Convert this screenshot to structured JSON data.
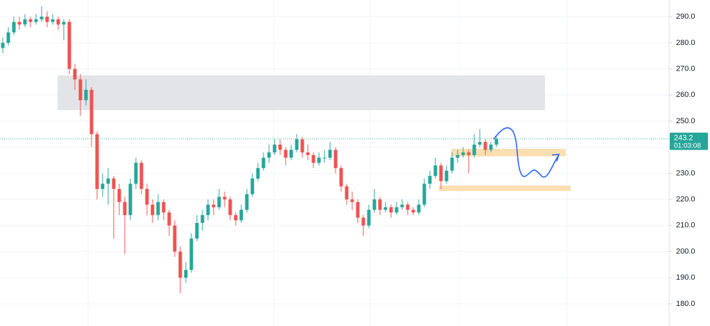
{
  "chart_data": {
    "type": "candlestick",
    "ylim": [
      171.5,
      296.4
    ],
    "yticks": [
      {
        "value": 180,
        "label": "180.0"
      },
      {
        "value": 190,
        "label": "190.0"
      },
      {
        "value": 200,
        "label": "200.0"
      },
      {
        "value": 210,
        "label": "210.0"
      },
      {
        "value": 220,
        "label": "220.0"
      },
      {
        "value": 230,
        "label": "230.0"
      },
      {
        "value": 240,
        "label": "240.0"
      },
      {
        "value": 250,
        "label": "250.0"
      },
      {
        "value": 260,
        "label": "260.0"
      },
      {
        "value": 270,
        "label": "270.0"
      },
      {
        "value": 280,
        "label": "280.0"
      },
      {
        "value": 290,
        "label": "290.0"
      }
    ],
    "grid": true,
    "up_color": "#26a69a",
    "down_color": "#ef5350",
    "countdown": "01:03:08",
    "zones": [
      {
        "from": 254.2,
        "to": 267.5,
        "color": "#e0e1e6"
      },
      {
        "from": 236.5,
        "to": 239.4,
        "color": "#fbdcaa"
      },
      {
        "from": 223.2,
        "to": 225.3,
        "color": "#fbdcaa"
      }
    ],
    "ohlc": [
      [
        278,
        282,
        276,
        280
      ],
      [
        280,
        286,
        279,
        284
      ],
      [
        284,
        290,
        283,
        288
      ],
      [
        288,
        290,
        285,
        287
      ],
      [
        287,
        291,
        286,
        289
      ],
      [
        289,
        290,
        286,
        288
      ],
      [
        288,
        291,
        287,
        289
      ],
      [
        289,
        294,
        288,
        290
      ],
      [
        290,
        292,
        286,
        288
      ],
      [
        288,
        291,
        287,
        289
      ],
      [
        289,
        290,
        285,
        287
      ],
      [
        287,
        289,
        281,
        288
      ],
      [
        288,
        289,
        268,
        270
      ],
      [
        270,
        272,
        262,
        266
      ],
      [
        266,
        268,
        252,
        258
      ],
      [
        258,
        266,
        256,
        262
      ],
      [
        262,
        263,
        240,
        245
      ],
      [
        245,
        246,
        220,
        224
      ],
      [
        224,
        230,
        221,
        226
      ],
      [
        226,
        232,
        218,
        228
      ],
      [
        228,
        229,
        205,
        224
      ],
      [
        224,
        226,
        214,
        219
      ],
      [
        219,
        221,
        199,
        214
      ],
      [
        214,
        228,
        212,
        226
      ],
      [
        226,
        236,
        224,
        234
      ],
      [
        234,
        235,
        222,
        224
      ],
      [
        224,
        226,
        214,
        218
      ],
      [
        218,
        220,
        211,
        214
      ],
      [
        214,
        222,
        212,
        219
      ],
      [
        219,
        220,
        212,
        215
      ],
      [
        215,
        216,
        206,
        210
      ],
      [
        210,
        212,
        198,
        200
      ],
      [
        200,
        202,
        184,
        190
      ],
      [
        190,
        196,
        188,
        193
      ],
      [
        193,
        207,
        192,
        205
      ],
      [
        205,
        214,
        204,
        211
      ],
      [
        211,
        216,
        208,
        214
      ],
      [
        214,
        220,
        212,
        218
      ],
      [
        218,
        220,
        214,
        217
      ],
      [
        217,
        224,
        216,
        221
      ],
      [
        221,
        223,
        217,
        220
      ],
      [
        220,
        221,
        212,
        214
      ],
      [
        214,
        215,
        210,
        212
      ],
      [
        212,
        218,
        211,
        216
      ],
      [
        216,
        224,
        215,
        222
      ],
      [
        222,
        230,
        221,
        228
      ],
      [
        228,
        234,
        227,
        232
      ],
      [
        232,
        238,
        231,
        236
      ],
      [
        236,
        241,
        234,
        238
      ],
      [
        238,
        243,
        237,
        241
      ],
      [
        241,
        243,
        237,
        239
      ],
      [
        239,
        240,
        233,
        236
      ],
      [
        236,
        241,
        235,
        239
      ],
      [
        239,
        245,
        238,
        243
      ],
      [
        243,
        244,
        236,
        238
      ],
      [
        238,
        241,
        235,
        237
      ],
      [
        237,
        238,
        232,
        234
      ],
      [
        234,
        238,
        233,
        236
      ],
      [
        236,
        239,
        234,
        236
      ],
      [
        236,
        242,
        235,
        239
      ],
      [
        239,
        240,
        230,
        232
      ],
      [
        232,
        233,
        223,
        225
      ],
      [
        225,
        226,
        218,
        220
      ],
      [
        220,
        223,
        216,
        219
      ],
      [
        219,
        220,
        211,
        213
      ],
      [
        213,
        214,
        206,
        210
      ],
      [
        210,
        218,
        209,
        216
      ],
      [
        216,
        224,
        215,
        220
      ],
      [
        220,
        221,
        214,
        216
      ],
      [
        216,
        219,
        215,
        217
      ],
      [
        217,
        218,
        213,
        215
      ],
      [
        215,
        219,
        214,
        217
      ],
      [
        217,
        220,
        216,
        218
      ],
      [
        218,
        219,
        214,
        216
      ],
      [
        216,
        217,
        214,
        215
      ],
      [
        215,
        220,
        214,
        218
      ],
      [
        218,
        228,
        217,
        226
      ],
      [
        226,
        231,
        224,
        229
      ],
      [
        229,
        236,
        228,
        233
      ],
      [
        233,
        234,
        224,
        227
      ],
      [
        227,
        233,
        226,
        231
      ],
      [
        231,
        238,
        230,
        236
      ],
      [
        236,
        239,
        234,
        237
      ],
      [
        237,
        240,
        236,
        238
      ],
      [
        238,
        239,
        230,
        237
      ],
      [
        237,
        245,
        236,
        241
      ],
      [
        241,
        247,
        240,
        242
      ],
      [
        242,
        243,
        237,
        239
      ],
      [
        239,
        242,
        238,
        241
      ],
      [
        241,
        244,
        240,
        243.2
      ]
    ]
  }
}
